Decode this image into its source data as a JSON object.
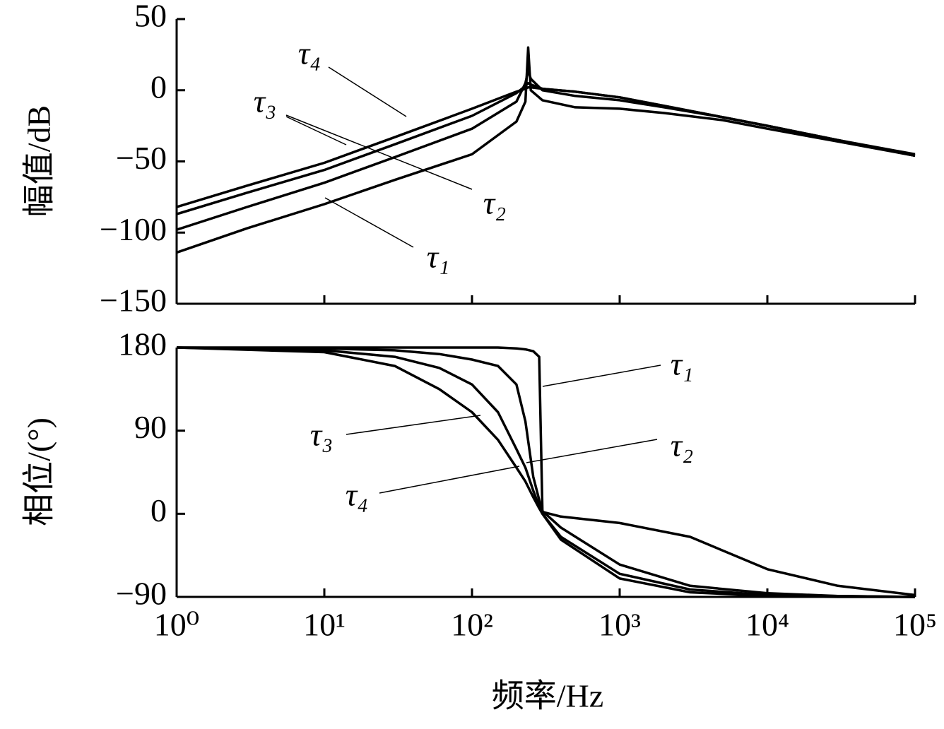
{
  "chart_data": [
    {
      "type": "line",
      "ylabel": "幅值/dB",
      "xlog": true,
      "xlim": [
        1,
        100000
      ],
      "ylim": [
        -150,
        50
      ],
      "yticks": [
        {
          "value": -150,
          "label": "−150"
        },
        {
          "value": -100,
          "label": "−100"
        },
        {
          "value": -50,
          "label": "−50"
        },
        0,
        50
      ],
      "x": [
        1,
        3,
        10,
        30,
        100,
        200,
        230,
        240,
        250,
        300,
        500,
        1000,
        2000,
        5000,
        10000,
        30000,
        100000
      ],
      "series": [
        {
          "name": "τ₁",
          "color": "#000000",
          "values": [
            -114,
            -97,
            -80,
            -63,
            -45,
            -22,
            -8,
            30,
            0,
            -7,
            -12,
            -13,
            -16,
            -21,
            -27,
            -36,
            -46
          ]
        },
        {
          "name": "τ₂",
          "color": "#000000",
          "values": [
            -98,
            -82,
            -65,
            -47,
            -27,
            -8,
            5,
            14,
            8,
            0,
            -4,
            -7,
            -12,
            -19,
            -25,
            -35,
            -46
          ]
        },
        {
          "name": "τ₃",
          "color": "#000000",
          "values": [
            -87,
            -72,
            -56,
            -38,
            -18,
            -2,
            3,
            5,
            4,
            1,
            -1,
            -5,
            -11,
            -19,
            -25,
            -35,
            -46
          ]
        },
        {
          "name": "τ₄",
          "color": "#000000",
          "values": [
            -82,
            -67,
            -51,
            -33,
            -13,
            -1,
            1,
            2,
            2,
            1,
            -1,
            -5,
            -11,
            -19,
            -25,
            -35,
            -45
          ]
        }
      ]
    },
    {
      "type": "line",
      "ylabel": "相位/(°)",
      "xlabel": "频率/Hz",
      "xlog": true,
      "xlim": [
        1,
        100000
      ],
      "xticks": [
        {
          "value": 1,
          "label": "10⁰"
        },
        {
          "value": 10,
          "label": "10¹"
        },
        {
          "value": 100,
          "label": "10²"
        },
        {
          "value": 1000,
          "label": "10³"
        },
        {
          "value": 10000,
          "label": "10⁴"
        },
        {
          "value": 100000,
          "label": "10⁵"
        }
      ],
      "ylim": [
        -90,
        180
      ],
      "yticks": [
        {
          "value": -90,
          "label": "−90"
        },
        0,
        90,
        180
      ],
      "x": [
        1,
        10,
        30,
        60,
        100,
        150,
        200,
        230,
        260,
        285,
        300,
        400,
        1000,
        3000,
        10000,
        30000,
        100000
      ],
      "series": [
        {
          "name": "τ₁",
          "color": "#000000",
          "values": [
            180,
            180,
            180,
            180,
            180,
            180,
            179,
            178,
            176,
            170,
            2,
            -3,
            -10,
            -25,
            -60,
            -78,
            -88
          ]
        },
        {
          "name": "τ₂",
          "color": "#000000",
          "values": [
            180,
            179,
            177,
            173,
            167,
            160,
            140,
            100,
            40,
            15,
            3,
            -15,
            -55,
            -78,
            -86,
            -89,
            -90
          ]
        },
        {
          "name": "τ₃",
          "color": "#000000",
          "values": [
            180,
            177,
            170,
            158,
            140,
            110,
            70,
            50,
            25,
            8,
            0,
            -25,
            -65,
            -82,
            -88,
            -89,
            -90
          ]
        },
        {
          "name": "τ₄",
          "color": "#000000",
          "values": [
            180,
            175,
            160,
            135,
            110,
            80,
            50,
            35,
            18,
            6,
            0,
            -28,
            -70,
            -85,
            -89,
            -90,
            -90
          ]
        }
      ]
    }
  ]
}
